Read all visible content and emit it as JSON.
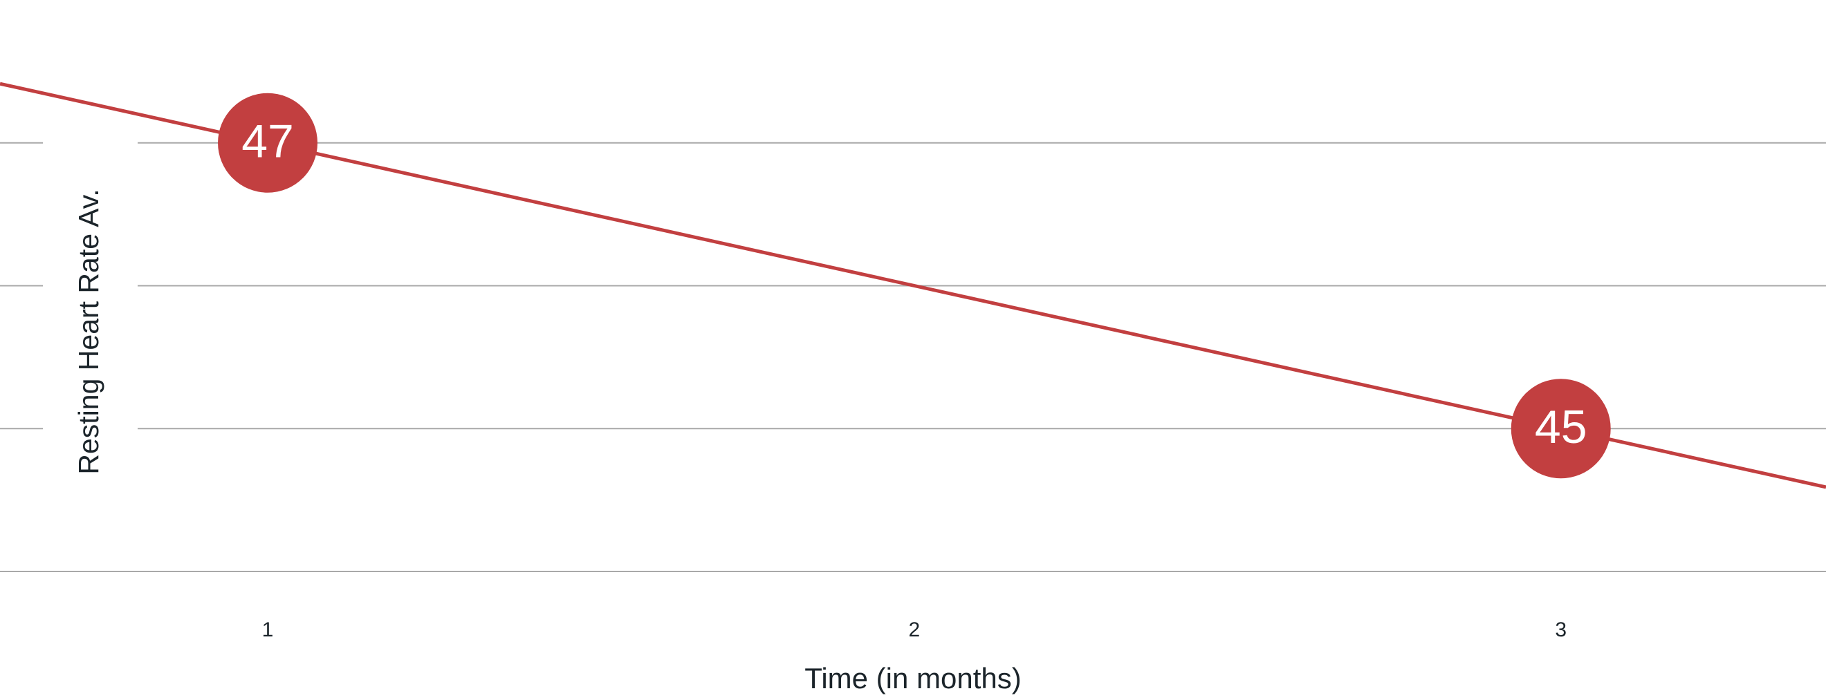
{
  "chart_data": {
    "type": "line",
    "x_label": "Time (in months)",
    "y_label": "Resting Heart Rate Av.",
    "categories": [
      1,
      2,
      3
    ],
    "x": [
      1,
      3
    ],
    "values": [
      47,
      45
    ],
    "color": "#c23f40",
    "xlim": [
      0.586,
      3.41
    ],
    "ylim": [
      43.1,
      48
    ],
    "yticks": [
      44,
      45,
      46,
      47
    ],
    "grid": true
  }
}
